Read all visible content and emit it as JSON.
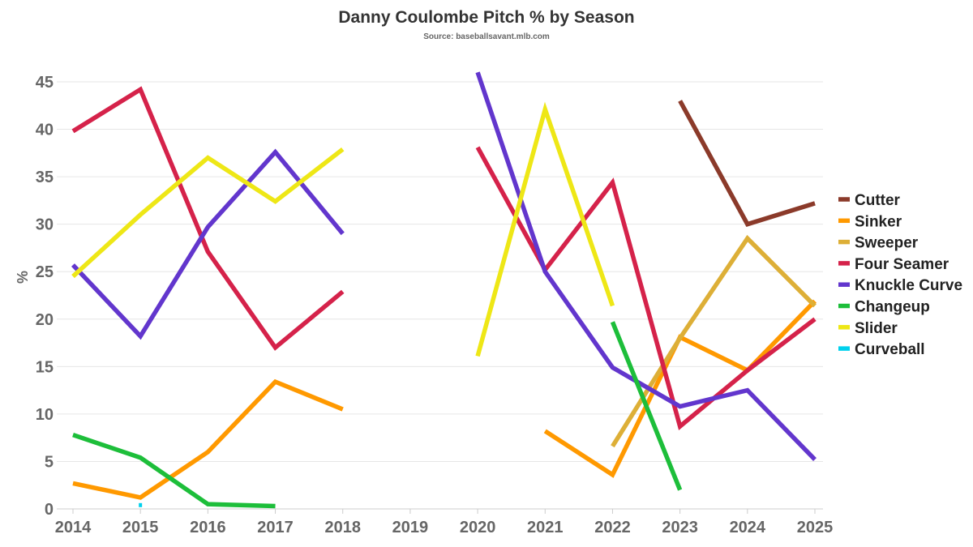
{
  "chart_data": {
    "type": "line",
    "title": "Danny Coulombe Pitch % by Season",
    "subtitle": "Source: baseballsavant.mlb.com",
    "xlabel": "",
    "ylabel": "%",
    "categories": [
      "2014",
      "2015",
      "2016",
      "2017",
      "2018",
      "2019",
      "2020",
      "2021",
      "2022",
      "2023",
      "2024",
      "2025"
    ],
    "yticks": [
      0,
      5,
      10,
      15,
      20,
      25,
      30,
      35,
      40,
      45
    ],
    "ylim": [
      0,
      45
    ],
    "legend_position": "right",
    "grid": true,
    "series": [
      {
        "name": "Cutter",
        "color": "#8B3A2A",
        "values": [
          null,
          null,
          null,
          null,
          null,
          null,
          null,
          null,
          null,
          43.0,
          30.0,
          32.2
        ]
      },
      {
        "name": "Sinker",
        "color": "#FF9900",
        "values": [
          2.7,
          1.2,
          6.0,
          13.4,
          10.5,
          null,
          null,
          8.2,
          3.6,
          18.1,
          14.6,
          21.9
        ]
      },
      {
        "name": "Sweeper",
        "color": "#DDAF37",
        "values": [
          null,
          null,
          null,
          null,
          null,
          null,
          null,
          null,
          6.6,
          18.0,
          28.5,
          21.4
        ]
      },
      {
        "name": "Four Seamer",
        "color": "#D5224A",
        "values": [
          39.8,
          44.2,
          27.1,
          17.0,
          22.9,
          null,
          38.1,
          25.2,
          34.4,
          8.7,
          14.6,
          20.0
        ]
      },
      {
        "name": "Knuckle Curve",
        "color": "#6236CD",
        "values": [
          25.7,
          18.2,
          29.7,
          37.6,
          29.0,
          null,
          46.0,
          25.0,
          14.9,
          10.8,
          12.5,
          5.2
        ]
      },
      {
        "name": "Changeup",
        "color": "#1DBE3A",
        "values": [
          7.8,
          5.4,
          0.5,
          0.3,
          null,
          null,
          null,
          null,
          19.7,
          2.0,
          null,
          null
        ]
      },
      {
        "name": "Slider",
        "color": "#EEE716",
        "values": [
          24.5,
          31.0,
          37.0,
          32.4,
          37.9,
          null,
          16.1,
          42.1,
          21.4,
          null,
          null,
          null
        ]
      },
      {
        "name": "Curveball",
        "color": "#00D1ED",
        "values": [
          null,
          0.4,
          null,
          null,
          null,
          null,
          null,
          null,
          null,
          null,
          null,
          null
        ]
      }
    ]
  }
}
